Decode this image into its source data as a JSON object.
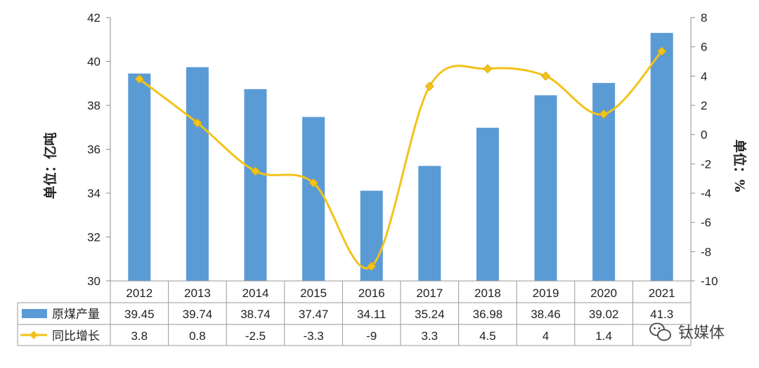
{
  "chart_data": {
    "type": "bar",
    "categories": [
      "2012",
      "2013",
      "2014",
      "2015",
      "2016",
      "2017",
      "2018",
      "2019",
      "2020",
      "2021"
    ],
    "series": [
      {
        "name": "原煤产量",
        "type": "bar",
        "axis": "left",
        "color": "#5b9bd5",
        "values": [
          39.45,
          39.74,
          38.74,
          37.47,
          34.11,
          35.24,
          36.98,
          38.46,
          39.02,
          41.3
        ],
        "value_labels": [
          "39.45",
          "39.74",
          "38.74",
          "37.47",
          "34.11",
          "35.24",
          "36.98",
          "38.46",
          "39.02",
          "41.3"
        ]
      },
      {
        "name": "同比增长",
        "type": "line",
        "axis": "right",
        "color": "#f2c31a",
        "values": [
          3.8,
          0.8,
          -2.5,
          -3.3,
          -9,
          3.3,
          4.5,
          4,
          1.4,
          5.7
        ],
        "value_labels": [
          "3.8",
          "0.8",
          "-2.5",
          "-3.3",
          "-9",
          "3.3",
          "4.5",
          "4",
          "1.4",
          "5.7"
        ]
      }
    ],
    "ylabel": "单位：亿吨",
    "ylabel_right": "单位：%",
    "ylim": [
      30,
      42
    ],
    "ylim_right": [
      -10,
      8
    ],
    "yticks": [
      "30",
      "32",
      "34",
      "36",
      "38",
      "40",
      "42"
    ],
    "yticks_right": [
      "-10",
      "-8",
      "-6",
      "-4",
      "-2",
      "0",
      "2",
      "4",
      "6",
      "8"
    ],
    "grid": false,
    "legend": "data-table-bottom",
    "data_table": true
  },
  "watermark": {
    "text": "钛媒体"
  }
}
